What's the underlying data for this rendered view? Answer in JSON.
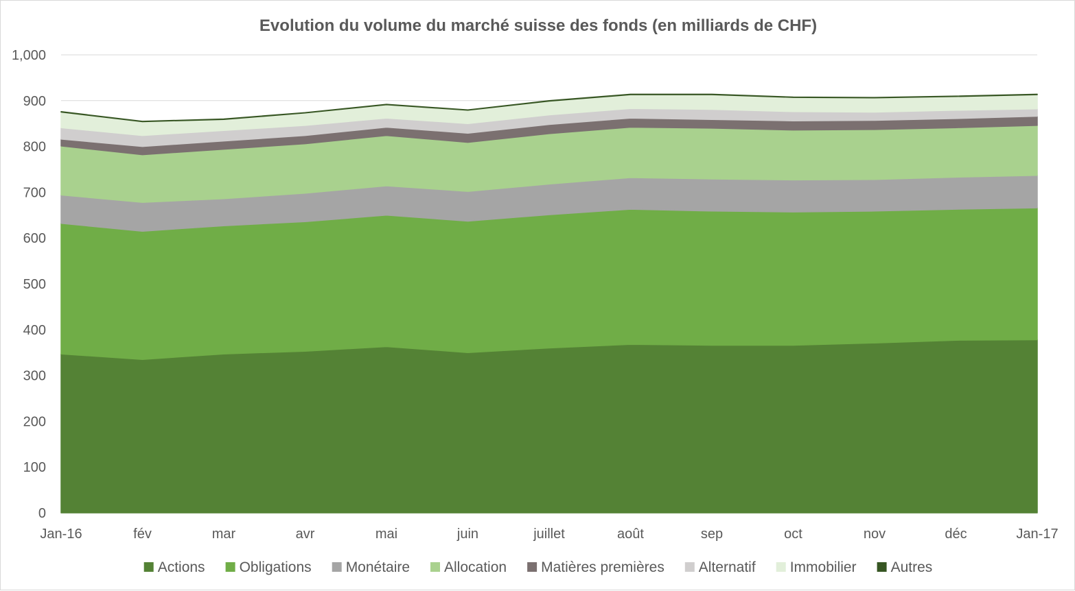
{
  "chart_data": {
    "type": "area",
    "stacked": true,
    "title": "Evolution du volume du marché suisse des fonds (en milliards de CHF)",
    "xlabel": "",
    "ylabel": "",
    "ylim": [
      0,
      1000
    ],
    "yticks": [
      "0",
      "100",
      "200",
      "300",
      "400",
      "500",
      "600",
      "700",
      "800",
      "900",
      "1,000"
    ],
    "categories": [
      "Jan-16",
      "fév",
      "mar",
      "avr",
      "mai",
      "juin",
      "juillet",
      "août",
      "sep",
      "oct",
      "nov",
      "déc",
      "Jan-17"
    ],
    "grid": "horizontal",
    "legend_position": "bottom",
    "series": [
      {
        "name": "Actions",
        "color": "#548235",
        "values": [
          347,
          335,
          347,
          353,
          363,
          350,
          360,
          368,
          366,
          366,
          371,
          377,
          378
        ]
      },
      {
        "name": "Obligations",
        "color": "#70ad47",
        "values": [
          285,
          280,
          280,
          283,
          287,
          287,
          291,
          295,
          293,
          291,
          288,
          286,
          288
        ]
      },
      {
        "name": "Monétaire",
        "color": "#a5a5a5",
        "values": [
          62,
          63,
          59,
          62,
          64,
          65,
          67,
          69,
          70,
          70,
          69,
          70,
          71
        ]
      },
      {
        "name": "Allocation",
        "color": "#a9d18e",
        "values": [
          107,
          104,
          108,
          108,
          110,
          107,
          110,
          110,
          111,
          109,
          109,
          108,
          109
        ]
      },
      {
        "name": "Matières premières",
        "color": "#7b7070",
        "values": [
          15,
          18,
          18,
          18,
          18,
          20,
          20,
          20,
          19,
          20,
          20,
          20,
          20
        ]
      },
      {
        "name": "Alternatif",
        "color": "#d0cece",
        "values": [
          25,
          24,
          23,
          22,
          20,
          21,
          21,
          21,
          22,
          20,
          18,
          18,
          16
        ]
      },
      {
        "name": "Immobilier",
        "color": "#e2efda",
        "values": [
          34,
          30,
          24,
          27,
          29,
          29,
          30,
          30,
          32,
          31,
          31,
          30,
          31
        ]
      },
      {
        "name": "Autres",
        "color": "#375623",
        "values": [
          1,
          1,
          1,
          1,
          1,
          1,
          1,
          1,
          1,
          1,
          1,
          1,
          1
        ]
      }
    ]
  }
}
